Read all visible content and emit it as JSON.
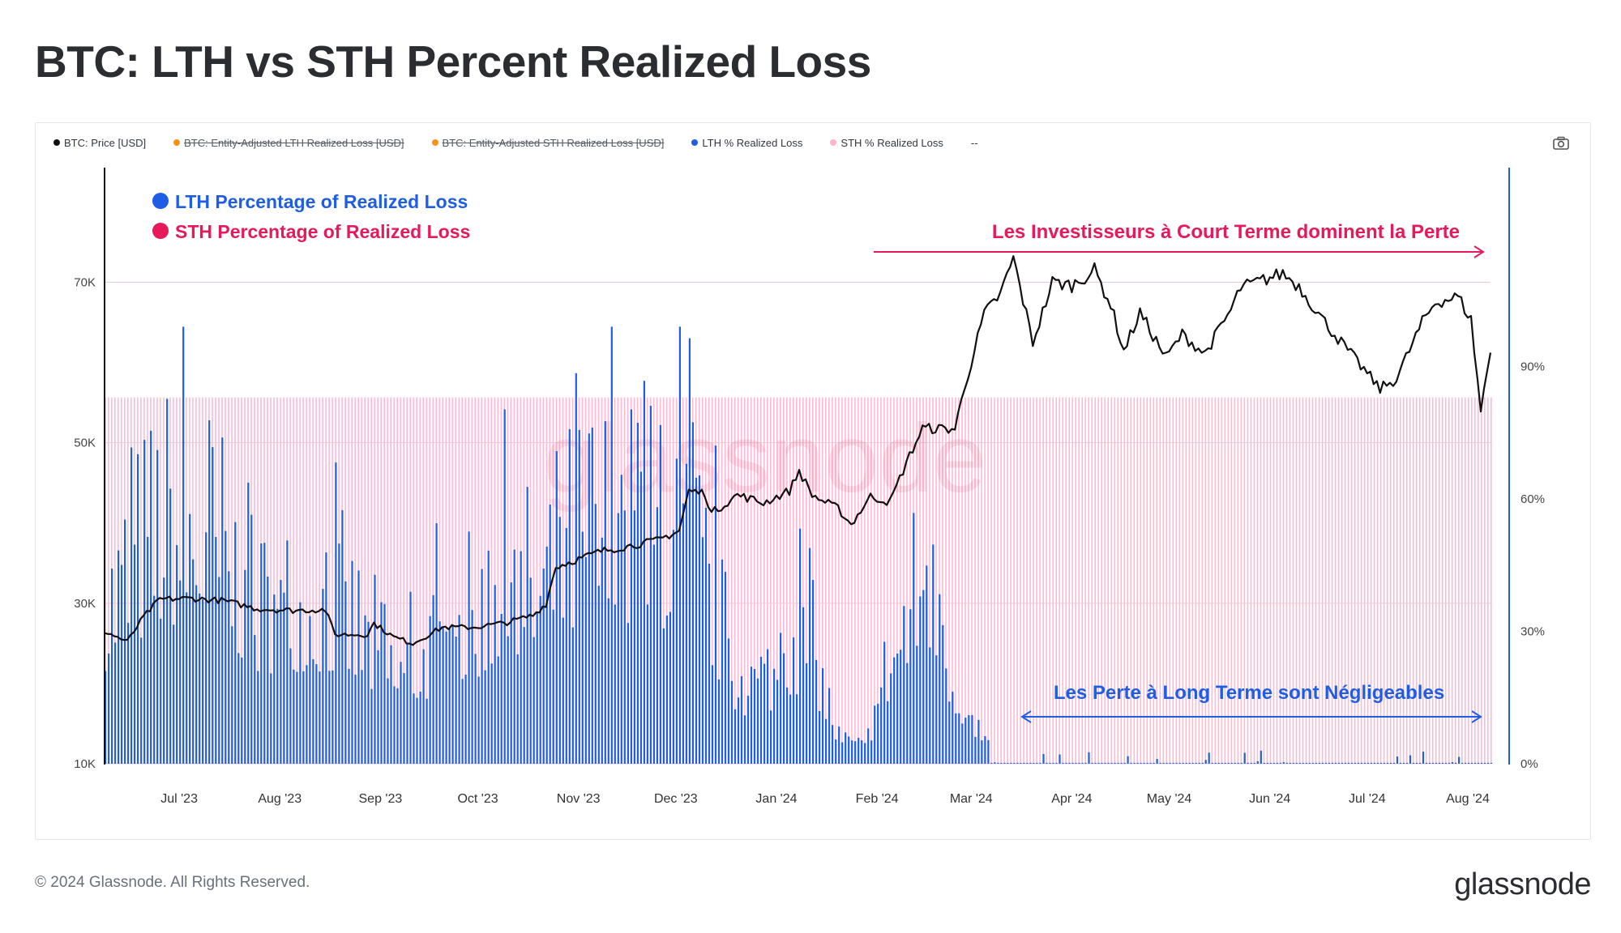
{
  "title": "BTC: LTH vs STH Percent Realized Loss",
  "legend": [
    {
      "label": "BTC: Price [USD]",
      "color": "#111111",
      "struck": false
    },
    {
      "label": "BTC: Entity-Adjusted LTH Realized Loss [USD]",
      "color": "#f7931a",
      "struck": true
    },
    {
      "label": "BTC: Entity-Adjusted STH Realized Loss [USD]",
      "color": "#f7931a",
      "struck": true
    },
    {
      "label": "LTH % Realized Loss",
      "color": "#1f5de6",
      "struck": false
    },
    {
      "label": "STH % Realized Loss",
      "color": "#ffb3cf",
      "struck": false
    },
    {
      "label": "--",
      "color": "",
      "struck": false
    }
  ],
  "annotations": {
    "lth_label": "LTH Percentage of Realized Loss",
    "sth_label": "STH Percentage of Realized Loss",
    "sth_dominates": "Les Investisseurs à Court Terme dominent la Perte",
    "lth_negligible": "Les Perte à Long Terme sont Négligeables"
  },
  "watermark": "glassnode",
  "footer": {
    "copyright": "© 2024 Glassnode. All Rights Reserved.",
    "logo": "glassnode"
  },
  "colors": {
    "lth": "#1f5de6",
    "sth": "#ffb8d2",
    "price": "#111111",
    "annotation_pink": "#e6195a",
    "annotation_blue": "#1f5de6"
  },
  "chart_data": {
    "type": "bar",
    "x_range": [
      "2023-06-08",
      "2024-08-08"
    ],
    "x_ticks": [
      "Jul '23",
      "Aug '23",
      "Sep '23",
      "Oct '23",
      "Nov '23",
      "Dec '23",
      "Jan '24",
      "Feb '24",
      "Mar '24",
      "Apr '24",
      "May '24",
      "Jun '24",
      "Jul '24",
      "Aug '24"
    ],
    "y_left": {
      "label": "",
      "ticks": [
        "10K",
        "30K",
        "50K",
        "70K"
      ],
      "range": [
        10000,
        76000
      ]
    },
    "y_right": {
      "label": "",
      "ticks": [
        "0%",
        "30%",
        "60%",
        "90%"
      ],
      "range": [
        0,
        1
      ]
    },
    "series": [
      {
        "name": "BTC: Price [USD]",
        "axis": "left",
        "kind": "line",
        "points": [
          [
            "2023-06-08",
            26500
          ],
          [
            "2023-06-15",
            25200
          ],
          [
            "2023-06-20",
            28300
          ],
          [
            "2023-06-25",
            30500
          ],
          [
            "2023-07-05",
            30600
          ],
          [
            "2023-07-15",
            30300
          ],
          [
            "2023-07-25",
            29300
          ],
          [
            "2023-08-05",
            29100
          ],
          [
            "2023-08-15",
            29200
          ],
          [
            "2023-08-18",
            26100
          ],
          [
            "2023-08-28",
            26100
          ],
          [
            "2023-08-30",
            27500
          ],
          [
            "2023-09-05",
            25800
          ],
          [
            "2023-09-11",
            25000
          ],
          [
            "2023-09-20",
            27000
          ],
          [
            "2023-09-30",
            27000
          ],
          [
            "2023-10-10",
            27600
          ],
          [
            "2023-10-18",
            28500
          ],
          [
            "2023-10-22",
            29900
          ],
          [
            "2023-10-25",
            34500
          ],
          [
            "2023-11-01",
            35500
          ],
          [
            "2023-11-08",
            36500
          ],
          [
            "2023-11-15",
            37000
          ],
          [
            "2023-11-25",
            37800
          ],
          [
            "2023-12-02",
            39000
          ],
          [
            "2023-12-05",
            44000
          ],
          [
            "2023-12-10",
            43700
          ],
          [
            "2023-12-12",
            41200
          ],
          [
            "2023-12-20",
            43500
          ],
          [
            "2023-12-28",
            42500
          ],
          [
            "2024-01-05",
            44000
          ],
          [
            "2024-01-08",
            46500
          ],
          [
            "2024-01-12",
            43500
          ],
          [
            "2024-01-15",
            42800
          ],
          [
            "2024-01-20",
            41800
          ],
          [
            "2024-01-24",
            39800
          ],
          [
            "2024-01-30",
            43300
          ],
          [
            "2024-02-05",
            42600
          ],
          [
            "2024-02-10",
            47500
          ],
          [
            "2024-02-15",
            51800
          ],
          [
            "2024-02-25",
            51700
          ],
          [
            "2024-02-28",
            57000
          ],
          [
            "2024-03-05",
            66000
          ],
          [
            "2024-03-10",
            68500
          ],
          [
            "2024-03-14",
            73000
          ],
          [
            "2024-03-20",
            62500
          ],
          [
            "2024-03-26",
            70000
          ],
          [
            "2024-04-01",
            69600
          ],
          [
            "2024-04-08",
            71500
          ],
          [
            "2024-04-13",
            67200
          ],
          [
            "2024-04-17",
            61400
          ],
          [
            "2024-04-22",
            66200
          ],
          [
            "2024-04-30",
            60600
          ],
          [
            "2024-05-05",
            63500
          ],
          [
            "2024-05-12",
            61100
          ],
          [
            "2024-05-20",
            66500
          ],
          [
            "2024-05-23",
            69300
          ],
          [
            "2024-06-05",
            71100
          ],
          [
            "2024-06-10",
            69500
          ],
          [
            "2024-06-18",
            65000
          ],
          [
            "2024-06-25",
            61500
          ],
          [
            "2024-07-05",
            56700
          ],
          [
            "2024-07-10",
            58000
          ],
          [
            "2024-07-18",
            65000
          ],
          [
            "2024-07-22",
            67500
          ],
          [
            "2024-07-29",
            68200
          ],
          [
            "2024-08-02",
            65300
          ],
          [
            "2024-08-05",
            54000
          ],
          [
            "2024-08-08",
            61500
          ]
        ]
      },
      {
        "name": "LTH % Realized Loss",
        "axis": "right",
        "kind": "bar",
        "envelope": [
          [
            "2023-06-08",
            0.6
          ],
          [
            "2023-06-25",
            0.9
          ],
          [
            "2023-07-10",
            0.88
          ],
          [
            "2023-07-25",
            0.58
          ],
          [
            "2023-08-10",
            0.6
          ],
          [
            "2023-08-20",
            0.58
          ],
          [
            "2023-09-05",
            0.35
          ],
          [
            "2023-09-20",
            0.45
          ],
          [
            "2023-10-05",
            0.6
          ],
          [
            "2023-10-20",
            0.68
          ],
          [
            "2023-11-05",
            0.9
          ],
          [
            "2023-11-20",
            0.85
          ],
          [
            "2023-12-05",
            0.9
          ],
          [
            "2023-12-20",
            0.3
          ],
          [
            "2024-01-01",
            0.35
          ],
          [
            "2024-01-10",
            0.5
          ],
          [
            "2024-01-20",
            0.1
          ],
          [
            "2024-01-28",
            0.06
          ],
          [
            "2024-02-05",
            0.42
          ],
          [
            "2024-02-15",
            0.7
          ],
          [
            "2024-02-25",
            0.32
          ],
          [
            "2024-03-02",
            0.12
          ],
          [
            "2024-03-07",
            0.04
          ],
          [
            "2024-03-10",
            0.0
          ],
          [
            "2024-08-08",
            0.02
          ]
        ]
      },
      {
        "name": "STH % Realized Loss",
        "axis": "right",
        "kind": "bar",
        "envelope": [
          [
            "2023-06-08",
            1.0
          ],
          [
            "2024-08-08",
            1.0
          ]
        ]
      }
    ]
  }
}
